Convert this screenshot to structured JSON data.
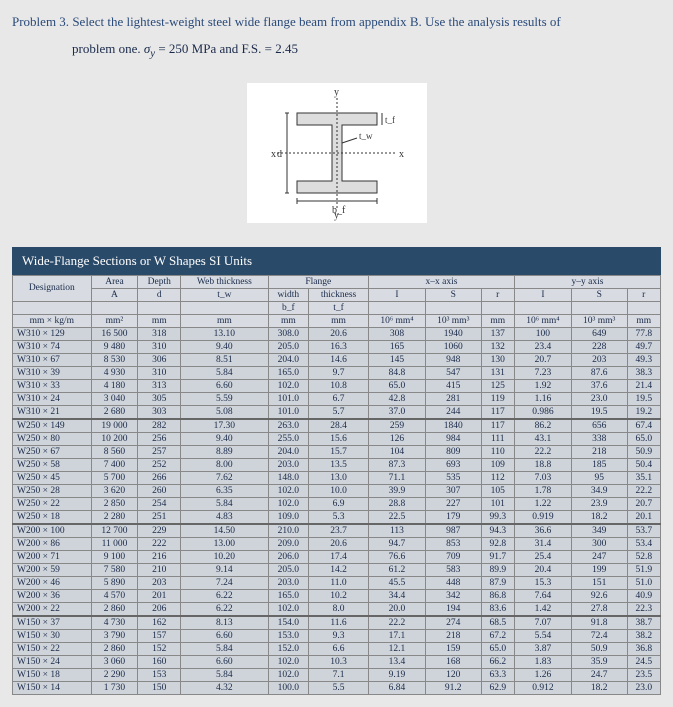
{
  "problem": {
    "title_prefix": "Problem 3.",
    "text": "Select the lightest-weight steel wide flange beam from appendix B. Use the analysis results of",
    "line2_prefix": "problem one.",
    "sigma_label": "σ_y = 250 MPa and F.S. = 2.45"
  },
  "diagram": {
    "labels": {
      "x": "x",
      "y": "y",
      "tw": "t_w",
      "tf": "t_f",
      "bf": "b_f",
      "d": "d"
    },
    "stroke": "#333",
    "fill": "#e0e0e0"
  },
  "table": {
    "title": "Wide-Flange Sections or W Shapes  SI Units",
    "headers": {
      "flange": "Flange",
      "designation": "Designation",
      "area": "Area",
      "depth": "Depth",
      "webthk": "Web thickness",
      "width": "width",
      "thickness": "thickness",
      "xx": "x–x axis",
      "yy": "y–y axis",
      "A": "A",
      "d": "d",
      "tw": "t_w",
      "bf": "b_f",
      "tf": "t_f",
      "I": "I",
      "S": "S",
      "r": "r",
      "u_desig": "mm × kg/m",
      "u_area": "mm²",
      "u_mm": "mm",
      "u_I": "10⁶ mm⁴",
      "u_S": "10³ mm³"
    },
    "groups": [
      {
        "rows": [
          {
            "d": "W310 × 129",
            "A": "16 500",
            "dep": "318",
            "tw": "13.10",
            "bf": "308.0",
            "tf": "20.6",
            "Ix": "308",
            "Sx": "1940",
            "rx": "137",
            "Iy": "100",
            "Sy": "649",
            "ry": "77.8"
          },
          {
            "d": "W310 × 74",
            "A": "9 480",
            "dep": "310",
            "tw": "9.40",
            "bf": "205.0",
            "tf": "16.3",
            "Ix": "165",
            "Sx": "1060",
            "rx": "132",
            "Iy": "23.4",
            "Sy": "228",
            "ry": "49.7"
          },
          {
            "d": "W310 × 67",
            "A": "8 530",
            "dep": "306",
            "tw": "8.51",
            "bf": "204.0",
            "tf": "14.6",
            "Ix": "145",
            "Sx": "948",
            "rx": "130",
            "Iy": "20.7",
            "Sy": "203",
            "ry": "49.3"
          },
          {
            "d": "W310 × 39",
            "A": "4 930",
            "dep": "310",
            "tw": "5.84",
            "bf": "165.0",
            "tf": "9.7",
            "Ix": "84.8",
            "Sx": "547",
            "rx": "131",
            "Iy": "7.23",
            "Sy": "87.6",
            "ry": "38.3"
          },
          {
            "d": "W310 × 33",
            "A": "4 180",
            "dep": "313",
            "tw": "6.60",
            "bf": "102.0",
            "tf": "10.8",
            "Ix": "65.0",
            "Sx": "415",
            "rx": "125",
            "Iy": "1.92",
            "Sy": "37.6",
            "ry": "21.4"
          },
          {
            "d": "W310 × 24",
            "A": "3 040",
            "dep": "305",
            "tw": "5.59",
            "bf": "101.0",
            "tf": "6.7",
            "Ix": "42.8",
            "Sx": "281",
            "rx": "119",
            "Iy": "1.16",
            "Sy": "23.0",
            "ry": "19.5"
          },
          {
            "d": "W310 × 21",
            "A": "2 680",
            "dep": "303",
            "tw": "5.08",
            "bf": "101.0",
            "tf": "5.7",
            "Ix": "37.0",
            "Sx": "244",
            "rx": "117",
            "Iy": "0.986",
            "Sy": "19.5",
            "ry": "19.2"
          }
        ]
      },
      {
        "rows": [
          {
            "d": "W250 × 149",
            "A": "19 000",
            "dep": "282",
            "tw": "17.30",
            "bf": "263.0",
            "tf": "28.4",
            "Ix": "259",
            "Sx": "1840",
            "rx": "117",
            "Iy": "86.2",
            "Sy": "656",
            "ry": "67.4"
          },
          {
            "d": "W250 × 80",
            "A": "10 200",
            "dep": "256",
            "tw": "9.40",
            "bf": "255.0",
            "tf": "15.6",
            "Ix": "126",
            "Sx": "984",
            "rx": "111",
            "Iy": "43.1",
            "Sy": "338",
            "ry": "65.0"
          },
          {
            "d": "W250 × 67",
            "A": "8 560",
            "dep": "257",
            "tw": "8.89",
            "bf": "204.0",
            "tf": "15.7",
            "Ix": "104",
            "Sx": "809",
            "rx": "110",
            "Iy": "22.2",
            "Sy": "218",
            "ry": "50.9"
          },
          {
            "d": "W250 × 58",
            "A": "7 400",
            "dep": "252",
            "tw": "8.00",
            "bf": "203.0",
            "tf": "13.5",
            "Ix": "87.3",
            "Sx": "693",
            "rx": "109",
            "Iy": "18.8",
            "Sy": "185",
            "ry": "50.4"
          },
          {
            "d": "W250 × 45",
            "A": "5 700",
            "dep": "266",
            "tw": "7.62",
            "bf": "148.0",
            "tf": "13.0",
            "Ix": "71.1",
            "Sx": "535",
            "rx": "112",
            "Iy": "7.03",
            "Sy": "95",
            "ry": "35.1"
          },
          {
            "d": "W250 × 28",
            "A": "3 620",
            "dep": "260",
            "tw": "6.35",
            "bf": "102.0",
            "tf": "10.0",
            "Ix": "39.9",
            "Sx": "307",
            "rx": "105",
            "Iy": "1.78",
            "Sy": "34.9",
            "ry": "22.2"
          },
          {
            "d": "W250 × 22",
            "A": "2 850",
            "dep": "254",
            "tw": "5.84",
            "bf": "102.0",
            "tf": "6.9",
            "Ix": "28.8",
            "Sx": "227",
            "rx": "101",
            "Iy": "1.22",
            "Sy": "23.9",
            "ry": "20.7"
          },
          {
            "d": "W250 × 18",
            "A": "2 280",
            "dep": "251",
            "tw": "4.83",
            "bf": "109.0",
            "tf": "5.3",
            "Ix": "22.5",
            "Sx": "179",
            "rx": "99.3",
            "Iy": "0.919",
            "Sy": "18.2",
            "ry": "20.1"
          }
        ]
      },
      {
        "rows": [
          {
            "d": "W200 × 100",
            "A": "12 700",
            "dep": "229",
            "tw": "14.50",
            "bf": "210.0",
            "tf": "23.7",
            "Ix": "113",
            "Sx": "987",
            "rx": "94.3",
            "Iy": "36.6",
            "Sy": "349",
            "ry": "53.7"
          },
          {
            "d": "W200 × 86",
            "A": "11 000",
            "dep": "222",
            "tw": "13.00",
            "bf": "209.0",
            "tf": "20.6",
            "Ix": "94.7",
            "Sx": "853",
            "rx": "92.8",
            "Iy": "31.4",
            "Sy": "300",
            "ry": "53.4"
          },
          {
            "d": "W200 × 71",
            "A": "9 100",
            "dep": "216",
            "tw": "10.20",
            "bf": "206.0",
            "tf": "17.4",
            "Ix": "76.6",
            "Sx": "709",
            "rx": "91.7",
            "Iy": "25.4",
            "Sy": "247",
            "ry": "52.8"
          },
          {
            "d": "W200 × 59",
            "A": "7 580",
            "dep": "210",
            "tw": "9.14",
            "bf": "205.0",
            "tf": "14.2",
            "Ix": "61.2",
            "Sx": "583",
            "rx": "89.9",
            "Iy": "20.4",
            "Sy": "199",
            "ry": "51.9"
          },
          {
            "d": "W200 × 46",
            "A": "5 890",
            "dep": "203",
            "tw": "7.24",
            "bf": "203.0",
            "tf": "11.0",
            "Ix": "45.5",
            "Sx": "448",
            "rx": "87.9",
            "Iy": "15.3",
            "Sy": "151",
            "ry": "51.0"
          },
          {
            "d": "W200 × 36",
            "A": "4 570",
            "dep": "201",
            "tw": "6.22",
            "bf": "165.0",
            "tf": "10.2",
            "Ix": "34.4",
            "Sx": "342",
            "rx": "86.8",
            "Iy": "7.64",
            "Sy": "92.6",
            "ry": "40.9"
          },
          {
            "d": "W200 × 22",
            "A": "2 860",
            "dep": "206",
            "tw": "6.22",
            "bf": "102.0",
            "tf": "8.0",
            "Ix": "20.0",
            "Sx": "194",
            "rx": "83.6",
            "Iy": "1.42",
            "Sy": "27.8",
            "ry": "22.3"
          }
        ]
      },
      {
        "rows": [
          {
            "d": "W150 × 37",
            "A": "4 730",
            "dep": "162",
            "tw": "8.13",
            "bf": "154.0",
            "tf": "11.6",
            "Ix": "22.2",
            "Sx": "274",
            "rx": "68.5",
            "Iy": "7.07",
            "Sy": "91.8",
            "ry": "38.7"
          },
          {
            "d": "W150 × 30",
            "A": "3 790",
            "dep": "157",
            "tw": "6.60",
            "bf": "153.0",
            "tf": "9.3",
            "Ix": "17.1",
            "Sx": "218",
            "rx": "67.2",
            "Iy": "5.54",
            "Sy": "72.4",
            "ry": "38.2"
          },
          {
            "d": "W150 × 22",
            "A": "2 860",
            "dep": "152",
            "tw": "5.84",
            "bf": "152.0",
            "tf": "6.6",
            "Ix": "12.1",
            "Sx": "159",
            "rx": "65.0",
            "Iy": "3.87",
            "Sy": "50.9",
            "ry": "36.8"
          },
          {
            "d": "W150 × 24",
            "A": "3 060",
            "dep": "160",
            "tw": "6.60",
            "bf": "102.0",
            "tf": "10.3",
            "Ix": "13.4",
            "Sx": "168",
            "rx": "66.2",
            "Iy": "1.83",
            "Sy": "35.9",
            "ry": "24.5"
          },
          {
            "d": "W150 × 18",
            "A": "2 290",
            "dep": "153",
            "tw": "5.84",
            "bf": "102.0",
            "tf": "7.1",
            "Ix": "9.19",
            "Sx": "120",
            "rx": "63.3",
            "Iy": "1.26",
            "Sy": "24.7",
            "ry": "23.5"
          },
          {
            "d": "W150 × 14",
            "A": "1 730",
            "dep": "150",
            "tw": "4.32",
            "bf": "100.0",
            "tf": "5.5",
            "Ix": "6.84",
            "Sx": "91.2",
            "rx": "62.9",
            "Iy": "0.912",
            "Sy": "18.2",
            "ry": "23.0"
          }
        ]
      }
    ]
  }
}
